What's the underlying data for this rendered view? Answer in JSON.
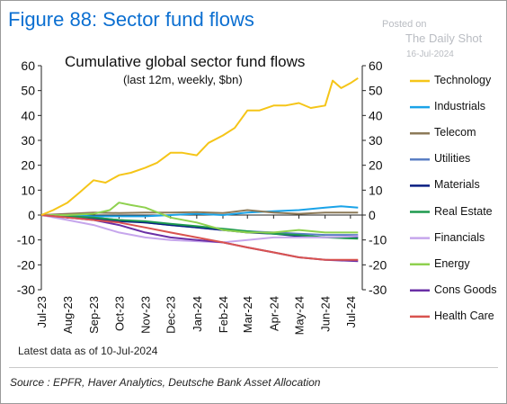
{
  "figure_title": "Figure 88: Sector fund flows",
  "watermark": {
    "line1": "Posted on",
    "line2": "The Daily Shot",
    "line3": "16-Jul-2024"
  },
  "footnote": "Latest data as of 10-Jul-2024",
  "source": "Source : EPFR, Haver Analytics, Deutsche Bank Asset Allocation",
  "chart_data": {
    "type": "line",
    "title": "Cumulative global sector fund flows",
    "subtitle": "(last 12m, weekly, $bn)",
    "xlabel": "",
    "ylabel": "",
    "ylim": [
      -30,
      60
    ],
    "yticks": [
      60,
      50,
      40,
      30,
      20,
      10,
      0,
      -10,
      -20,
      -30
    ],
    "xlim": [
      "2023-07-01",
      "2024-07-15"
    ],
    "x_tick_labels": [
      "Jul-23",
      "Aug-23",
      "Sep-23",
      "Oct-23",
      "Nov-23",
      "Dec-23",
      "Jan-24",
      "Feb-24",
      "Mar-24",
      "Apr-24",
      "May-24",
      "Jun-24",
      "Jul-24"
    ],
    "x_tick_dates": [
      "2023-07-01",
      "2023-08-01",
      "2023-09-01",
      "2023-10-01",
      "2023-11-01",
      "2023-12-01",
      "2024-01-01",
      "2024-02-01",
      "2024-03-01",
      "2024-04-01",
      "2024-05-01",
      "2024-06-01",
      "2024-07-01"
    ],
    "grid": false,
    "legend_position": "right",
    "series": [
      {
        "name": "Technology",
        "color": "#f5c518",
        "points": [
          [
            "2023-07-01",
            0
          ],
          [
            "2023-07-15",
            2
          ],
          [
            "2023-08-01",
            5
          ],
          [
            "2023-08-15",
            9
          ],
          [
            "2023-09-01",
            14
          ],
          [
            "2023-09-15",
            13
          ],
          [
            "2023-10-01",
            16
          ],
          [
            "2023-10-15",
            17
          ],
          [
            "2023-11-01",
            19
          ],
          [
            "2023-11-15",
            21
          ],
          [
            "2023-12-01",
            25
          ],
          [
            "2023-12-15",
            25
          ],
          [
            "2024-01-01",
            24
          ],
          [
            "2024-01-15",
            29
          ],
          [
            "2024-02-01",
            32
          ],
          [
            "2024-02-15",
            35
          ],
          [
            "2024-03-01",
            42
          ],
          [
            "2024-03-15",
            42
          ],
          [
            "2024-04-01",
            44
          ],
          [
            "2024-04-15",
            44
          ],
          [
            "2024-05-01",
            45
          ],
          [
            "2024-05-15",
            43
          ],
          [
            "2024-06-01",
            44
          ],
          [
            "2024-06-10",
            54
          ],
          [
            "2024-06-20",
            51
          ],
          [
            "2024-07-01",
            53
          ],
          [
            "2024-07-10",
            55
          ]
        ]
      },
      {
        "name": "Industrials",
        "color": "#1aa3e8",
        "points": [
          [
            "2023-07-01",
            0
          ],
          [
            "2023-08-01",
            0
          ],
          [
            "2023-09-01",
            -0.5
          ],
          [
            "2023-10-01",
            -0.5
          ],
          [
            "2023-11-01",
            -0.5
          ],
          [
            "2023-12-01",
            0
          ],
          [
            "2024-01-01",
            0.5
          ],
          [
            "2024-02-01",
            0
          ],
          [
            "2024-03-01",
            1
          ],
          [
            "2024-04-01",
            1.5
          ],
          [
            "2024-05-01",
            2
          ],
          [
            "2024-06-01",
            3
          ],
          [
            "2024-06-20",
            3.5
          ],
          [
            "2024-07-10",
            3
          ]
        ]
      },
      {
        "name": "Telecom",
        "color": "#8c7a58",
        "points": [
          [
            "2023-07-01",
            0
          ],
          [
            "2023-08-01",
            0.5
          ],
          [
            "2023-09-01",
            1
          ],
          [
            "2023-10-01",
            0.8
          ],
          [
            "2023-11-01",
            1
          ],
          [
            "2023-12-01",
            1
          ],
          [
            "2024-01-01",
            1.2
          ],
          [
            "2024-02-01",
            0.8
          ],
          [
            "2024-03-01",
            2
          ],
          [
            "2024-04-01",
            1
          ],
          [
            "2024-05-01",
            0.5
          ],
          [
            "2024-06-01",
            1
          ],
          [
            "2024-07-10",
            1
          ]
        ]
      },
      {
        "name": "Utilities",
        "color": "#5b7fc4",
        "points": [
          [
            "2023-07-01",
            0
          ],
          [
            "2023-08-01",
            -0.5
          ],
          [
            "2023-09-01",
            -1
          ],
          [
            "2023-10-01",
            -2
          ],
          [
            "2023-11-01",
            -3
          ],
          [
            "2023-12-01",
            -4
          ],
          [
            "2024-01-01",
            -5
          ],
          [
            "2024-02-01",
            -6
          ],
          [
            "2024-03-01",
            -6.5
          ],
          [
            "2024-04-01",
            -7
          ],
          [
            "2024-05-01",
            -7.5
          ],
          [
            "2024-06-01",
            -8
          ],
          [
            "2024-07-10",
            -8
          ]
        ]
      },
      {
        "name": "Materials",
        "color": "#0a1e82",
        "points": [
          [
            "2023-07-01",
            0
          ],
          [
            "2023-08-01",
            -0.5
          ],
          [
            "2023-09-01",
            -1.5
          ],
          [
            "2023-10-01",
            -2.5
          ],
          [
            "2023-11-01",
            -3
          ],
          [
            "2023-12-01",
            -4
          ],
          [
            "2024-01-01",
            -5
          ],
          [
            "2024-02-01",
            -6
          ],
          [
            "2024-03-01",
            -7
          ],
          [
            "2024-04-01",
            -7.5
          ],
          [
            "2024-05-01",
            -8.5
          ],
          [
            "2024-06-01",
            -9
          ],
          [
            "2024-07-10",
            -9
          ]
        ]
      },
      {
        "name": "Real Estate",
        "color": "#1e9a4f",
        "points": [
          [
            "2023-07-01",
            0
          ],
          [
            "2023-08-01",
            -0.5
          ],
          [
            "2023-09-01",
            -1
          ],
          [
            "2023-10-01",
            -2
          ],
          [
            "2023-11-01",
            -2.5
          ],
          [
            "2023-12-01",
            -3.5
          ],
          [
            "2024-01-01",
            -4.5
          ],
          [
            "2024-02-01",
            -5.5
          ],
          [
            "2024-03-01",
            -6.5
          ],
          [
            "2024-04-01",
            -7.5
          ],
          [
            "2024-05-01",
            -8
          ],
          [
            "2024-06-01",
            -9
          ],
          [
            "2024-07-10",
            -9.5
          ]
        ]
      },
      {
        "name": "Financials",
        "color": "#c6a6ec",
        "points": [
          [
            "2023-07-01",
            0
          ],
          [
            "2023-08-01",
            -2
          ],
          [
            "2023-09-01",
            -4
          ],
          [
            "2023-10-01",
            -7
          ],
          [
            "2023-11-01",
            -9
          ],
          [
            "2023-12-01",
            -10
          ],
          [
            "2024-01-01",
            -10.5
          ],
          [
            "2024-02-01",
            -11
          ],
          [
            "2024-03-01",
            -10
          ],
          [
            "2024-04-01",
            -9
          ],
          [
            "2024-05-01",
            -9
          ],
          [
            "2024-06-01",
            -9
          ],
          [
            "2024-07-10",
            -8.5
          ]
        ]
      },
      {
        "name": "Energy",
        "color": "#8fd14f",
        "points": [
          [
            "2023-07-01",
            0
          ],
          [
            "2023-08-01",
            0
          ],
          [
            "2023-09-01",
            0.5
          ],
          [
            "2023-09-20",
            2
          ],
          [
            "2023-10-01",
            5
          ],
          [
            "2023-10-15",
            4
          ],
          [
            "2023-11-01",
            3
          ],
          [
            "2023-12-01",
            -1
          ],
          [
            "2024-01-01",
            -3
          ],
          [
            "2024-02-01",
            -6
          ],
          [
            "2024-03-01",
            -7
          ],
          [
            "2024-04-01",
            -7
          ],
          [
            "2024-05-01",
            -6
          ],
          [
            "2024-06-01",
            -7
          ],
          [
            "2024-07-10",
            -7
          ]
        ]
      },
      {
        "name": "Cons Goods",
        "color": "#6a2fa6",
        "points": [
          [
            "2023-07-01",
            0
          ],
          [
            "2023-08-01",
            -1
          ],
          [
            "2023-09-01",
            -2
          ],
          [
            "2023-10-01",
            -4
          ],
          [
            "2023-11-01",
            -7
          ],
          [
            "2023-12-01",
            -9
          ],
          [
            "2024-01-01",
            -10
          ],
          [
            "2024-02-01",
            -11
          ],
          [
            "2024-03-01",
            -13
          ],
          [
            "2024-04-01",
            -15
          ],
          [
            "2024-05-01",
            -17
          ],
          [
            "2024-06-01",
            -18
          ],
          [
            "2024-07-10",
            -18.5
          ]
        ]
      },
      {
        "name": "Health Care",
        "color": "#d9534f",
        "points": [
          [
            "2023-07-01",
            0
          ],
          [
            "2023-08-01",
            -1
          ],
          [
            "2023-09-01",
            -2
          ],
          [
            "2023-10-01",
            -3
          ],
          [
            "2023-11-01",
            -5
          ],
          [
            "2023-12-01",
            -7
          ],
          [
            "2024-01-01",
            -9
          ],
          [
            "2024-02-01",
            -11
          ],
          [
            "2024-03-01",
            -13
          ],
          [
            "2024-04-01",
            -15
          ],
          [
            "2024-05-01",
            -17
          ],
          [
            "2024-06-01",
            -18
          ],
          [
            "2024-07-10",
            -18
          ]
        ]
      }
    ]
  }
}
